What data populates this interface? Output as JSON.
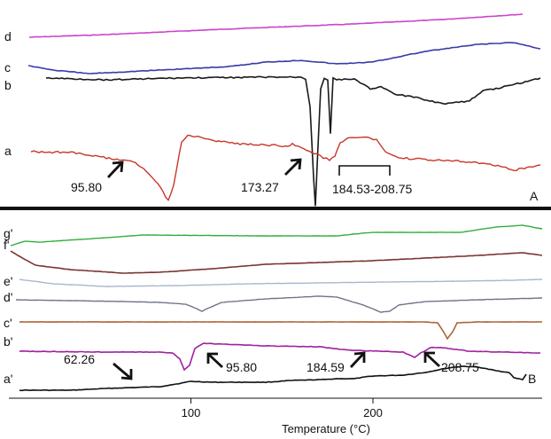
{
  "chart_data": [
    {
      "type": "line",
      "panel_label": "A",
      "series": [
        {
          "name": "d",
          "color": "#cc44cc"
        },
        {
          "name": "c",
          "color": "#3a3aa8"
        },
        {
          "name": "b",
          "color": "#1a1a1a"
        },
        {
          "name": "a",
          "color": "#c8362b"
        }
      ],
      "annotations": [
        "95.80",
        "173.27",
        "184.53-208.75"
      ],
      "grid": false
    },
    {
      "type": "line",
      "panel_label": "B",
      "series": [
        {
          "name": "g'",
          "color": "#2fae3a"
        },
        {
          "name": "f'",
          "color": "#7a3530"
        },
        {
          "name": "e'",
          "color": "#a9b7cc"
        },
        {
          "name": "d'",
          "color": "#6e7488"
        },
        {
          "name": "c'",
          "color": "#b0623a"
        },
        {
          "name": "b'",
          "color": "#a020a0"
        },
        {
          "name": "a'",
          "color": "#111111"
        }
      ],
      "annotations": [
        "62.26",
        "95.80",
        "184.59",
        "208.75"
      ],
      "xlabel": "Temperature (°C)",
      "xticks": [
        100,
        200
      ],
      "xlim": [
        0,
        280
      ],
      "grid": false
    }
  ]
}
